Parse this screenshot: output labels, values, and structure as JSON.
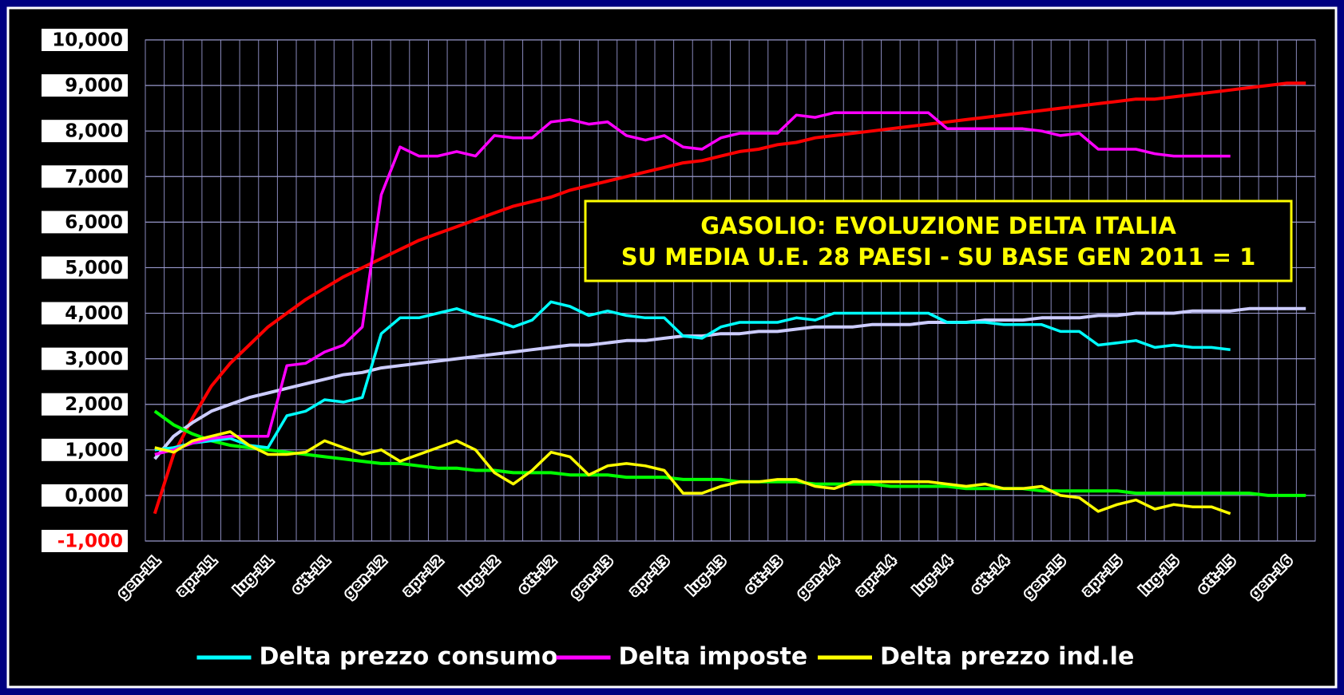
{
  "chart_data": {
    "type": "line",
    "annotation": [
      "GASOLIO: EVOLUZIONE DELTA ITALIA",
      "SU MEDIA U.E. 28 PAESI - SU BASE GEN 2011 = 1"
    ],
    "categories": [
      "gen-11",
      null,
      null,
      "apr-11",
      null,
      null,
      "lug-11",
      null,
      null,
      "ott-11",
      null,
      null,
      "gen-12",
      null,
      null,
      "apr-12",
      null,
      null,
      "lug-12",
      null,
      null,
      "ott-12",
      null,
      null,
      "gen-13",
      null,
      null,
      "apr-13",
      null,
      null,
      "lug-13",
      null,
      null,
      "ott-13",
      null,
      null,
      "gen-14",
      null,
      null,
      "apr-14",
      null,
      null,
      "lug-14",
      null,
      null,
      "ott-14",
      null,
      null,
      "gen-15",
      null,
      null,
      "apr-15",
      null,
      null,
      "lug-15",
      null,
      null,
      "ott-15",
      null,
      null,
      "gen-16",
      null
    ],
    "ylim": [
      -1,
      10
    ],
    "yticks": [
      {
        "value": -1,
        "label": "-1,000"
      },
      {
        "value": 0,
        "label": "0,000"
      },
      {
        "value": 1,
        "label": "1,000"
      },
      {
        "value": 2,
        "label": "2,000"
      },
      {
        "value": 3,
        "label": "3,000"
      },
      {
        "value": 4,
        "label": "4,000"
      },
      {
        "value": 5,
        "label": "5,000"
      },
      {
        "value": 6,
        "label": "6,000"
      },
      {
        "value": 7,
        "label": "7,000"
      },
      {
        "value": 8,
        "label": "8,000"
      },
      {
        "value": 9,
        "label": "9,000"
      },
      {
        "value": 10,
        "label": "10,000"
      }
    ],
    "grid": true,
    "legend": "bottom",
    "series": [
      {
        "name": "Delta prezzo consumo",
        "color": "#00ffff",
        "values": [
          1.0,
          1.05,
          1.15,
          1.2,
          1.25,
          1.1,
          1.05,
          1.75,
          1.85,
          2.1,
          2.05,
          2.15,
          3.55,
          3.9,
          3.9,
          4.0,
          4.1,
          3.95,
          3.85,
          3.7,
          3.85,
          4.25,
          4.15,
          3.95,
          4.05,
          3.95,
          3.9,
          3.9,
          3.5,
          3.45,
          3.7,
          3.8,
          3.8,
          3.8,
          3.9,
          3.85,
          4.0,
          4.0,
          4.0,
          4.0,
          4.0,
          4.0,
          3.8,
          3.8,
          3.8,
          3.75,
          3.75,
          3.75,
          3.6,
          3.6,
          3.3,
          3.35,
          3.4,
          3.25,
          3.3,
          3.25,
          3.25,
          3.2,
          null,
          null,
          null,
          null
        ]
      },
      {
        "name": "Delta imposte",
        "color": "#ff00ff",
        "values": [
          0.9,
          1.0,
          1.15,
          1.25,
          1.3,
          1.3,
          1.3,
          2.85,
          2.9,
          3.15,
          3.3,
          3.7,
          6.6,
          7.65,
          7.45,
          7.45,
          7.55,
          7.45,
          7.9,
          7.85,
          7.85,
          8.2,
          8.25,
          8.15,
          8.2,
          7.9,
          7.8,
          7.9,
          7.65,
          7.6,
          7.85,
          7.95,
          7.95,
          7.95,
          8.35,
          8.3,
          8.4,
          8.4,
          8.4,
          8.4,
          8.4,
          8.4,
          8.05,
          8.05,
          8.05,
          8.05,
          8.05,
          8.0,
          7.9,
          7.95,
          7.6,
          7.6,
          7.6,
          7.5,
          7.45,
          7.45,
          7.45,
          7.45,
          null,
          null,
          null,
          null
        ]
      },
      {
        "name": "Delta prezzo ind.le",
        "color": "#ffff00",
        "values": [
          1.05,
          0.95,
          1.2,
          1.3,
          1.4,
          1.1,
          0.9,
          0.9,
          0.95,
          1.2,
          1.05,
          0.9,
          1.0,
          0.75,
          0.9,
          1.05,
          1.2,
          1.0,
          0.5,
          0.25,
          0.55,
          0.95,
          0.85,
          0.45,
          0.65,
          0.7,
          0.65,
          0.55,
          0.05,
          0.05,
          0.2,
          0.3,
          0.3,
          0.35,
          0.35,
          0.2,
          0.15,
          0.3,
          0.3,
          0.3,
          0.3,
          0.3,
          0.25,
          0.2,
          0.25,
          0.15,
          0.15,
          0.2,
          0.0,
          -0.05,
          -0.35,
          -0.2,
          -0.1,
          -0.3,
          -0.2,
          -0.25,
          -0.25,
          -0.4,
          null,
          null,
          null,
          null
        ]
      }
    ],
    "trendlines": [
      {
        "color": "#ff0000",
        "values": [
          -0.4,
          0.9,
          1.7,
          2.4,
          2.9,
          3.3,
          3.7,
          4.0,
          4.3,
          4.55,
          4.8,
          5.0,
          5.2,
          5.4,
          5.6,
          5.75,
          5.9,
          6.05,
          6.2,
          6.35,
          6.45,
          6.55,
          6.7,
          6.8,
          6.9,
          7.0,
          7.1,
          7.2,
          7.3,
          7.35,
          7.45,
          7.55,
          7.6,
          7.7,
          7.75,
          7.85,
          7.9,
          7.95,
          8.0,
          8.05,
          8.1,
          8.15,
          8.2,
          8.25,
          8.3,
          8.35,
          8.4,
          8.45,
          8.5,
          8.55,
          8.6,
          8.65,
          8.7,
          8.7,
          8.75,
          8.8,
          8.85,
          8.9,
          8.95,
          9.0,
          9.05,
          9.05
        ]
      },
      {
        "color": "#ccccff",
        "values": [
          0.8,
          1.3,
          1.6,
          1.85,
          2.0,
          2.15,
          2.25,
          2.35,
          2.45,
          2.55,
          2.65,
          2.7,
          2.8,
          2.85,
          2.9,
          2.95,
          3.0,
          3.05,
          3.1,
          3.15,
          3.2,
          3.25,
          3.3,
          3.3,
          3.35,
          3.4,
          3.4,
          3.45,
          3.5,
          3.5,
          3.55,
          3.55,
          3.6,
          3.6,
          3.65,
          3.7,
          3.7,
          3.7,
          3.75,
          3.75,
          3.75,
          3.8,
          3.8,
          3.8,
          3.85,
          3.85,
          3.85,
          3.9,
          3.9,
          3.9,
          3.95,
          3.95,
          4.0,
          4.0,
          4.0,
          4.05,
          4.05,
          4.05,
          4.1,
          4.1,
          4.1,
          4.1
        ]
      },
      {
        "color": "#00ff00",
        "values": [
          1.85,
          1.55,
          1.35,
          1.2,
          1.1,
          1.05,
          1.0,
          0.95,
          0.9,
          0.85,
          0.8,
          0.75,
          0.7,
          0.7,
          0.65,
          0.6,
          0.6,
          0.55,
          0.55,
          0.5,
          0.5,
          0.5,
          0.45,
          0.45,
          0.45,
          0.4,
          0.4,
          0.4,
          0.35,
          0.35,
          0.35,
          0.3,
          0.3,
          0.3,
          0.3,
          0.25,
          0.25,
          0.25,
          0.25,
          0.2,
          0.2,
          0.2,
          0.2,
          0.15,
          0.15,
          0.15,
          0.15,
          0.1,
          0.1,
          0.1,
          0.1,
          0.1,
          0.05,
          0.05,
          0.05,
          0.05,
          0.05,
          0.05,
          0.05,
          0.0,
          0.0,
          0.0
        ]
      }
    ]
  }
}
